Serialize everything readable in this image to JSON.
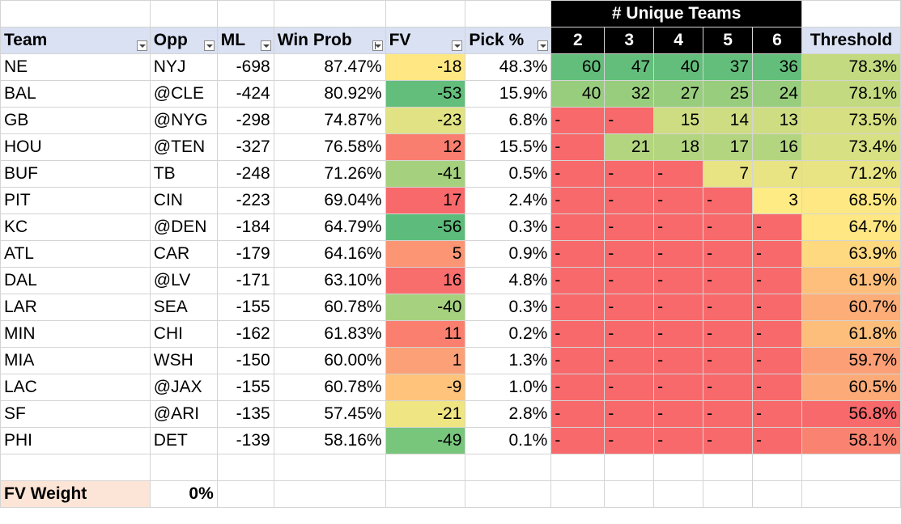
{
  "header": {
    "unique_title": "# Unique Teams",
    "columns": {
      "team": "Team",
      "opp": "Opp",
      "ml": "ML",
      "win_prob": "Win Prob",
      "fv": "FV",
      "pick": "Pick %",
      "u2": "2",
      "u3": "3",
      "u4": "4",
      "u5": "5",
      "u6": "6",
      "threshold": "Threshold"
    }
  },
  "rows": [
    {
      "team": "NE",
      "opp": "NYJ",
      "ml": "-698",
      "win": "87.47%",
      "fv": "-18",
      "pick": "48.3%",
      "u2": "60",
      "u3": "47",
      "u4": "40",
      "u5": "37",
      "u6": "36",
      "thr": "78.3%"
    },
    {
      "team": "BAL",
      "opp": "@CLE",
      "ml": "-424",
      "win": "80.92%",
      "fv": "-53",
      "pick": "15.9%",
      "u2": "40",
      "u3": "32",
      "u4": "27",
      "u5": "25",
      "u6": "24",
      "thr": "78.1%"
    },
    {
      "team": "GB",
      "opp": "@NYG",
      "ml": "-298",
      "win": "74.87%",
      "fv": "-23",
      "pick": "6.8%",
      "u2": "-",
      "u3": "-",
      "u4": "15",
      "u5": "14",
      "u6": "13",
      "thr": "73.5%"
    },
    {
      "team": "HOU",
      "opp": "@TEN",
      "ml": "-327",
      "win": "76.58%",
      "fv": "12",
      "pick": "15.5%",
      "u2": "-",
      "u3": "21",
      "u4": "18",
      "u5": "17",
      "u6": "16",
      "thr": "73.4%"
    },
    {
      "team": "BUF",
      "opp": "TB",
      "ml": "-248",
      "win": "71.26%",
      "fv": "-41",
      "pick": "0.5%",
      "u2": "-",
      "u3": "-",
      "u4": "-",
      "u5": "7",
      "u6": "7",
      "thr": "71.2%"
    },
    {
      "team": "PIT",
      "opp": "CIN",
      "ml": "-223",
      "win": "69.04%",
      "fv": "17",
      "pick": "2.4%",
      "u2": "-",
      "u3": "-",
      "u4": "-",
      "u5": "-",
      "u6": "3",
      "thr": "68.5%"
    },
    {
      "team": "KC",
      "opp": "@DEN",
      "ml": "-184",
      "win": "64.79%",
      "fv": "-56",
      "pick": "0.3%",
      "u2": "-",
      "u3": "-",
      "u4": "-",
      "u5": "-",
      "u6": "-",
      "thr": "64.7%"
    },
    {
      "team": "ATL",
      "opp": "CAR",
      "ml": "-179",
      "win": "64.16%",
      "fv": "5",
      "pick": "0.9%",
      "u2": "-",
      "u3": "-",
      "u4": "-",
      "u5": "-",
      "u6": "-",
      "thr": "63.9%"
    },
    {
      "team": "DAL",
      "opp": "@LV",
      "ml": "-171",
      "win": "63.10%",
      "fv": "16",
      "pick": "4.8%",
      "u2": "-",
      "u3": "-",
      "u4": "-",
      "u5": "-",
      "u6": "-",
      "thr": "61.9%"
    },
    {
      "team": "LAR",
      "opp": "SEA",
      "ml": "-155",
      "win": "60.78%",
      "fv": "-40",
      "pick": "0.3%",
      "u2": "-",
      "u3": "-",
      "u4": "-",
      "u5": "-",
      "u6": "-",
      "thr": "60.7%"
    },
    {
      "team": "MIN",
      "opp": "CHI",
      "ml": "-162",
      "win": "61.83%",
      "fv": "11",
      "pick": "0.2%",
      "u2": "-",
      "u3": "-",
      "u4": "-",
      "u5": "-",
      "u6": "-",
      "thr": "61.8%"
    },
    {
      "team": "MIA",
      "opp": "WSH",
      "ml": "-150",
      "win": "60.00%",
      "fv": "1",
      "pick": "1.3%",
      "u2": "-",
      "u3": "-",
      "u4": "-",
      "u5": "-",
      "u6": "-",
      "thr": "59.7%"
    },
    {
      "team": "LAC",
      "opp": "@JAX",
      "ml": "-155",
      "win": "60.78%",
      "fv": "-9",
      "pick": "1.0%",
      "u2": "-",
      "u3": "-",
      "u4": "-",
      "u5": "-",
      "u6": "-",
      "thr": "60.5%"
    },
    {
      "team": "SF",
      "opp": "@ARI",
      "ml": "-135",
      "win": "57.45%",
      "fv": "-21",
      "pick": "2.8%",
      "u2": "-",
      "u3": "-",
      "u4": "-",
      "u5": "-",
      "u6": "-",
      "thr": "56.8%"
    },
    {
      "team": "PHI",
      "opp": "DET",
      "ml": "-139",
      "win": "58.16%",
      "fv": "-49",
      "pick": "0.1%",
      "u2": "-",
      "u3": "-",
      "u4": "-",
      "u5": "-",
      "u6": "-",
      "thr": "58.1%"
    }
  ],
  "colors": {
    "fv": [
      "#ffe884",
      "#63be7b",
      "#e1e283",
      "#fa7e6f",
      "#a5d17f",
      "#f8696b",
      "#5dbc7b",
      "#fb9574",
      "#f86e6c",
      "#a6d17f",
      "#fa7f6f",
      "#fca077",
      "#ffc37c",
      "#f0e583",
      "#78c57c"
    ],
    "unique": [
      [
        "#63be7b",
        "#63be7b",
        "#63be7b",
        "#63be7b",
        "#63be7b"
      ],
      [
        "#99cd7e",
        "#99cd7e",
        "#99cd7e",
        "#99cd7e",
        "#99cd7e"
      ],
      [
        "#f8696b",
        "#f8696b",
        "#cfdd82",
        "#cfdd82",
        "#cfdd82"
      ],
      [
        "#f8696b",
        "#b4d580",
        "#b4d580",
        "#b4d580",
        "#b4d580"
      ],
      [
        "#f8696b",
        "#f8696b",
        "#f8696b",
        "#e8e383",
        "#e8e383"
      ],
      [
        "#f8696b",
        "#f8696b",
        "#f8696b",
        "#f8696b",
        "#ffeb84"
      ],
      [
        "#f8696b",
        "#f8696b",
        "#f8696b",
        "#f8696b",
        "#f8696b"
      ],
      [
        "#f8696b",
        "#f8696b",
        "#f8696b",
        "#f8696b",
        "#f8696b"
      ],
      [
        "#f8696b",
        "#f8696b",
        "#f8696b",
        "#f8696b",
        "#f8696b"
      ],
      [
        "#f8696b",
        "#f8696b",
        "#f8696b",
        "#f8696b",
        "#f8696b"
      ],
      [
        "#f8696b",
        "#f8696b",
        "#f8696b",
        "#f8696b",
        "#f8696b"
      ],
      [
        "#f8696b",
        "#f8696b",
        "#f8696b",
        "#f8696b",
        "#f8696b"
      ],
      [
        "#f8696b",
        "#f8696b",
        "#f8696b",
        "#f8696b",
        "#f8696b"
      ],
      [
        "#f8696b",
        "#f8696b",
        "#f8696b",
        "#f8696b",
        "#f8696b"
      ],
      [
        "#f8696b",
        "#f8696b",
        "#f8696b",
        "#f8696b",
        "#f8696b"
      ]
    ],
    "threshold": [
      "#c3da80",
      "#c4da80",
      "#d6df82",
      "#d7e082",
      "#e8e483",
      "#fee883",
      "#ffe784",
      "#fed980",
      "#fdbf7b",
      "#fcad78",
      "#fdbe7b",
      "#fc9f76",
      "#fcab78",
      "#f8696b",
      "#f98370"
    ]
  },
  "footer": {
    "fv_weight_label": "FV Weight",
    "fv_weight_value": "0%"
  }
}
